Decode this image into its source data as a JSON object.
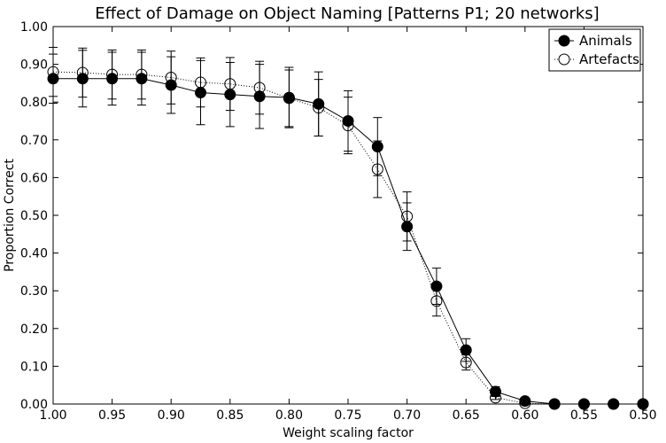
{
  "chart_data": {
    "type": "line",
    "title": "Effect of Damage on Object Naming [Patterns P1; 20 networks]",
    "xlabel": "Weight scaling factor",
    "ylabel": "Proportion Correct",
    "xlim": [
      1.0,
      0.5
    ],
    "ylim": [
      0.0,
      1.0
    ],
    "x_reversed": true,
    "grid": false,
    "legend_position": "top-right",
    "xticks": [
      "1.00",
      "0.95",
      "0.90",
      "0.85",
      "0.80",
      "0.75",
      "0.70",
      "0.65",
      "0.60",
      "0.55",
      "0.50"
    ],
    "yticks": [
      "0.00",
      "0.10",
      "0.20",
      "0.30",
      "0.40",
      "0.50",
      "0.60",
      "0.70",
      "0.80",
      "0.90",
      "1.00"
    ],
    "x": [
      1.0,
      0.975,
      0.95,
      0.925,
      0.9,
      0.875,
      0.85,
      0.825,
      0.8,
      0.775,
      0.75,
      0.725,
      0.7,
      0.675,
      0.65,
      0.625,
      0.6,
      0.575,
      0.55,
      0.525,
      0.5
    ],
    "series": [
      {
        "name": "Animals",
        "marker": "filled-circle",
        "line_style": "solid",
        "color": "#000000",
        "values": [
          0.862,
          0.862,
          0.862,
          0.862,
          0.845,
          0.825,
          0.82,
          0.815,
          0.812,
          0.795,
          0.75,
          0.682,
          0.47,
          0.312,
          0.143,
          0.033,
          0.008,
          0.0,
          0.0,
          0.0,
          0.0
        ],
        "error": [
          0.065,
          0.075,
          0.07,
          0.07,
          0.075,
          0.085,
          0.085,
          0.085,
          0.08,
          0.085,
          0.08,
          0.077,
          0.063,
          0.048,
          0.03,
          0.013,
          0.003,
          0.0,
          0.0,
          0.0,
          0.0
        ]
      },
      {
        "name": "Artefacts",
        "marker": "open-circle",
        "line_style": "dotted",
        "color": "#000000",
        "values": [
          0.88,
          0.878,
          0.873,
          0.873,
          0.865,
          0.852,
          0.848,
          0.838,
          0.81,
          0.785,
          0.738,
          0.622,
          0.497,
          0.273,
          0.11,
          0.017,
          0.002,
          0.0,
          0.0,
          0.0,
          0.0
        ],
        "error": [
          0.065,
          0.065,
          0.065,
          0.065,
          0.07,
          0.065,
          0.07,
          0.07,
          0.075,
          0.075,
          0.075,
          0.075,
          0.065,
          0.04,
          0.02,
          0.005,
          0.002,
          0.0,
          0.0,
          0.0,
          0.0
        ]
      }
    ]
  }
}
